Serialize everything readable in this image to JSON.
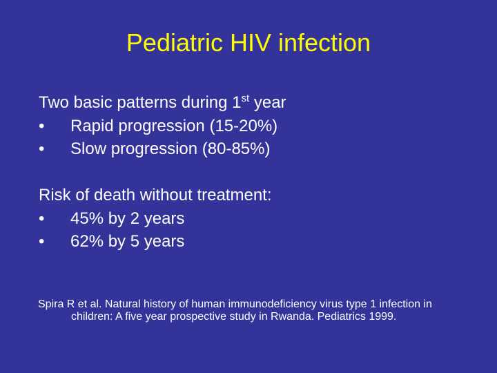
{
  "slide": {
    "title": "Pediatric HIV infection",
    "section1": {
      "heading_prefix": "Two basic patterns during 1",
      "heading_sup": "st",
      "heading_suffix": " year",
      "bullets": [
        "Rapid progression (15-20%)",
        "Slow progression (80-85%)"
      ]
    },
    "section2": {
      "heading": "Risk of death without treatment:",
      "bullets": [
        "45% by 2 years",
        "62% by 5 years"
      ]
    },
    "bullet_char": "•",
    "citation": {
      "line1": "Spira R et al. Natural history of human immunodeficiency virus type 1 infection in",
      "line2": "children: A five year prospective study in Rwanda.  Pediatrics 1999."
    },
    "colors": {
      "background": "#333399",
      "title": "#ffff00",
      "text": "#ffffff"
    }
  }
}
